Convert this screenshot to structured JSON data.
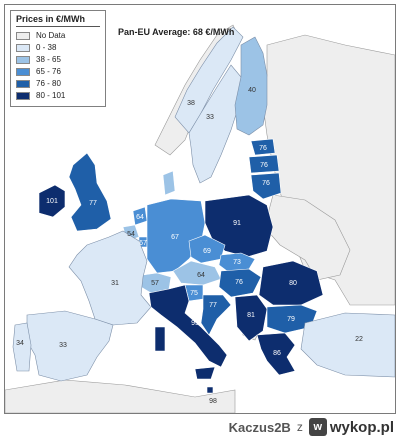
{
  "legend": {
    "title": "Prices in €/MWh",
    "items": [
      {
        "label": "No Data",
        "color": "#eeeeee"
      },
      {
        "label": "0 - 38",
        "color": "#dbe8f6"
      },
      {
        "label": "38 - 65",
        "color": "#9cc3e6"
      },
      {
        "label": "65 - 76",
        "color": "#4a8ed4"
      },
      {
        "label": "76 - 80",
        "color": "#1f5fa8"
      },
      {
        "label": "80 - 101",
        "color": "#0d2d6e"
      }
    ]
  },
  "average_note": "Pan-EU Average: 68 €/MWh",
  "regions": [
    {
      "id": "norway-north",
      "value": "38"
    },
    {
      "id": "sweden",
      "value": "33"
    },
    {
      "id": "finland",
      "value": "40"
    },
    {
      "id": "estonia",
      "value": "76"
    },
    {
      "id": "latvia",
      "value": "76"
    },
    {
      "id": "lithuania",
      "value": "76"
    },
    {
      "id": "ireland",
      "value": "101"
    },
    {
      "id": "united-kingdom",
      "value": "77"
    },
    {
      "id": "netherlands",
      "value": "64"
    },
    {
      "id": "belgium",
      "value": "54"
    },
    {
      "id": "luxembourg",
      "value": "67"
    },
    {
      "id": "germany",
      "value": "67"
    },
    {
      "id": "poland",
      "value": "91"
    },
    {
      "id": "czechia",
      "value": "69"
    },
    {
      "id": "slovakia",
      "value": "73"
    },
    {
      "id": "austria",
      "value": "64"
    },
    {
      "id": "hungary",
      "value": "76"
    },
    {
      "id": "switzerland",
      "value": "57"
    },
    {
      "id": "slovenia",
      "value": "75"
    },
    {
      "id": "croatia",
      "value": "77"
    },
    {
      "id": "romania",
      "value": "80"
    },
    {
      "id": "serbia",
      "value": "81"
    },
    {
      "id": "bulgaria",
      "value": "79"
    },
    {
      "id": "france",
      "value": "31"
    },
    {
      "id": "italy",
      "value": "95"
    },
    {
      "id": "spain",
      "value": "33"
    },
    {
      "id": "portugal",
      "value": "34"
    },
    {
      "id": "greece",
      "value": "86"
    },
    {
      "id": "turkey",
      "value": "22"
    },
    {
      "id": "malta",
      "value": "98"
    }
  ],
  "footer": {
    "user": "Kaczus2B",
    "separator": "z",
    "site": "wykop.pl",
    "logo_icon": "w-logo-icon"
  }
}
